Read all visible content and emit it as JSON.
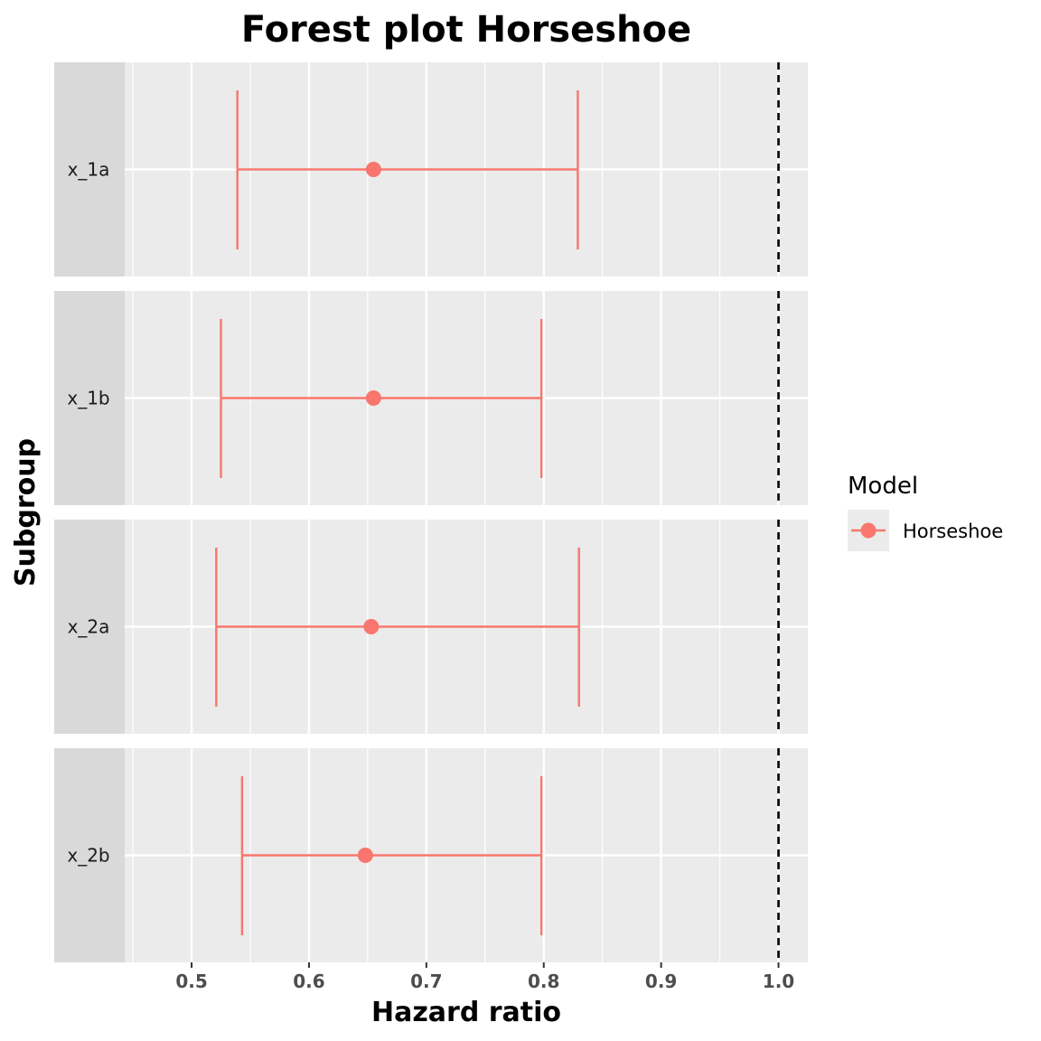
{
  "chart_data": {
    "type": "forest",
    "title": "Forest plot Horseshoe",
    "xlabel": "Hazard ratio",
    "ylabel": "Subgroup",
    "xlim": [
      0.443,
      1.025
    ],
    "x_ticks": [
      0.5,
      0.6,
      0.7,
      0.8,
      0.9,
      1.0
    ],
    "x_tick_labels": [
      "0.5",
      "0.6",
      "0.7",
      "0.8",
      "0.9",
      "1.0"
    ],
    "reference_line": 1.0,
    "grid": true,
    "legend": {
      "title": "Model",
      "position": "right",
      "entries": [
        "Horseshoe"
      ]
    },
    "series": [
      {
        "name": "Horseshoe",
        "color": "#f8766d",
        "points": [
          {
            "subgroup": "x_1a",
            "estimate": 0.655,
            "lower": 0.539,
            "upper": 0.829
          },
          {
            "subgroup": "x_1b",
            "estimate": 0.655,
            "lower": 0.525,
            "upper": 0.798
          },
          {
            "subgroup": "x_2a",
            "estimate": 0.653,
            "lower": 0.521,
            "upper": 0.83
          },
          {
            "subgroup": "x_2b",
            "estimate": 0.648,
            "lower": 0.543,
            "upper": 0.798
          }
        ]
      }
    ],
    "colors": {
      "panel_bg": "#ebebeb",
      "strip_bg": "#d9d9d9",
      "grid": "#ffffff",
      "ref_line": "#000000"
    }
  }
}
